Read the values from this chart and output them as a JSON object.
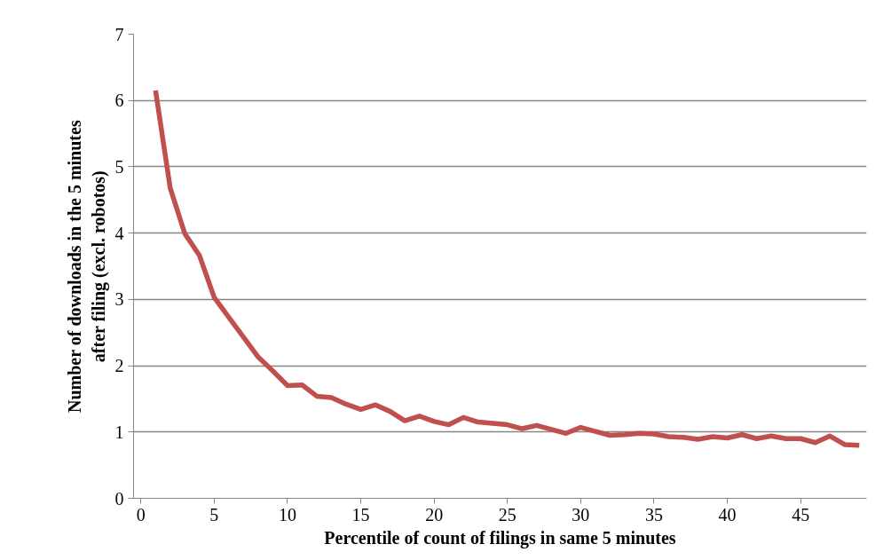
{
  "chart_data": {
    "type": "line",
    "xlabel": "Percentile of count of filings in same 5 minutes",
    "ylabel": "Number of downloads in the 5 minutes after filing (excl. robotos)",
    "x": [
      1,
      2,
      3,
      4,
      5,
      6,
      7,
      8,
      9,
      10,
      11,
      12,
      13,
      14,
      15,
      16,
      17,
      18,
      19,
      20,
      21,
      22,
      23,
      24,
      25,
      26,
      27,
      28,
      29,
      30,
      31,
      32,
      33,
      34,
      35,
      36,
      37,
      38,
      39,
      40,
      41,
      42,
      43,
      44,
      45,
      46,
      47,
      48,
      49
    ],
    "series": [
      {
        "color": "#c0504d",
        "values": [
          6.15,
          4.68,
          3.99,
          3.66,
          3.03,
          2.73,
          2.43,
          2.13,
          1.92,
          1.7,
          1.71,
          1.54,
          1.52,
          1.42,
          1.34,
          1.41,
          1.31,
          1.17,
          1.24,
          1.16,
          1.11,
          1.22,
          1.15,
          1.13,
          1.11,
          1.05,
          1.1,
          1.04,
          0.98,
          1.07,
          1.01,
          0.95,
          0.96,
          0.98,
          0.97,
          0.93,
          0.92,
          0.89,
          0.93,
          0.91,
          0.96,
          0.9,
          0.94,
          0.9,
          0.9,
          0.84,
          0.94,
          0.81,
          0.8
        ]
      }
    ],
    "xlim": [
      -0.5,
      49.5
    ],
    "xticks": [
      0,
      5,
      10,
      15,
      20,
      25,
      30,
      35,
      40,
      45
    ],
    "ylim": [
      0,
      7
    ],
    "yticks": [
      0,
      1,
      2,
      3,
      4,
      5,
      6,
      7
    ],
    "grid": "y",
    "marker": "none",
    "line_style": "solid"
  }
}
